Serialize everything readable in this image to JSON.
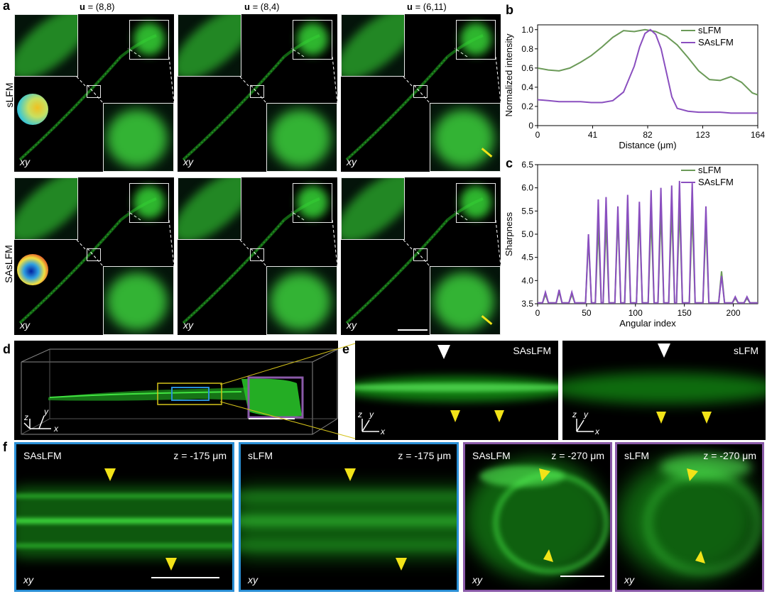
{
  "panel_letters": {
    "a": "a",
    "b": "b",
    "c": "c",
    "d": "d",
    "e": "e",
    "f": "f"
  },
  "panel_a": {
    "columns": [
      "u = (8,8)",
      "u = (8,4)",
      "u = (6,11)"
    ],
    "column_u": "u",
    "column_vals": [
      " = (8,8)",
      " = (8,4)",
      " = (6,11)"
    ],
    "rows": [
      "sLFM",
      "SAsLFM"
    ],
    "plane_label": "xy"
  },
  "panel_e": {
    "left_label": "SAsLFM",
    "right_label": "sLFM"
  },
  "panel_f": {
    "tiles": [
      {
        "method": "SAsLFM",
        "z": "z = -175 μm",
        "plane": "xy"
      },
      {
        "method": "sLFM",
        "z": "z = -175 μm",
        "plane": "xy"
      },
      {
        "method": "SAsLFM",
        "z": "z = -270 μm",
        "plane": "xy"
      },
      {
        "method": "sLFM",
        "z": "z = -270 μm",
        "plane": "xy"
      }
    ]
  },
  "axes_labels": {
    "x": "x",
    "y": "y",
    "z": "z"
  },
  "colors": {
    "slfm": "#6b9a58",
    "saslfm": "#8a4fbf",
    "fluor": "#2fd12f",
    "blue_box": "#2a8fd6",
    "purple_box": "#8a5aa8",
    "yellow": "#f2e318"
  },
  "chart_data": [
    {
      "type": "line",
      "panel": "b",
      "xlabel": "Distance (μm)",
      "ylabel": "Normalized intensity",
      "xlim": [
        0,
        164
      ],
      "ylim": [
        0.0,
        1.05
      ],
      "xticks": [
        0,
        41,
        82,
        123,
        164
      ],
      "yticks": [
        0.0,
        0.2,
        0.4,
        0.6,
        0.8,
        1.0
      ],
      "xtick_labels": [
        "0",
        "41",
        "82",
        "123",
        "164"
      ],
      "ytick_labels": [
        "0",
        "0.2",
        "0.4",
        "0.6",
        "0.8",
        "1.0"
      ],
      "legend_position": "top-right",
      "series": [
        {
          "name": "sLFM",
          "color": "#6b9a58",
          "x": [
            0,
            8,
            16,
            24,
            32,
            40,
            48,
            56,
            64,
            72,
            80,
            88,
            96,
            104,
            112,
            120,
            128,
            136,
            144,
            152,
            160,
            164
          ],
          "y": [
            0.6,
            0.58,
            0.57,
            0.6,
            0.66,
            0.73,
            0.82,
            0.92,
            0.99,
            0.98,
            1.0,
            0.98,
            0.93,
            0.84,
            0.71,
            0.57,
            0.48,
            0.47,
            0.51,
            0.45,
            0.34,
            0.32
          ]
        },
        {
          "name": "SAsLFM",
          "color": "#8a4fbf",
          "x": [
            0,
            8,
            16,
            24,
            32,
            40,
            48,
            56,
            64,
            72,
            76,
            80,
            84,
            88,
            92,
            96,
            100,
            104,
            112,
            120,
            128,
            136,
            144,
            152,
            160,
            164
          ],
          "y": [
            0.27,
            0.26,
            0.25,
            0.25,
            0.25,
            0.24,
            0.24,
            0.26,
            0.35,
            0.62,
            0.82,
            0.96,
            1.0,
            0.95,
            0.8,
            0.55,
            0.3,
            0.18,
            0.15,
            0.14,
            0.14,
            0.14,
            0.13,
            0.13,
            0.13,
            0.13
          ]
        }
      ]
    },
    {
      "type": "line",
      "panel": "c",
      "xlabel": "Angular index",
      "ylabel": "Sharpness",
      "xlim": [
        0,
        225
      ],
      "ylim": [
        3.5,
        6.5
      ],
      "xticks": [
        0,
        50,
        100,
        150,
        200
      ],
      "yticks": [
        3.5,
        4.0,
        4.5,
        5.0,
        5.5,
        6.0,
        6.5
      ],
      "xtick_labels": [
        "0",
        "50",
        "100",
        "150",
        "200"
      ],
      "ytick_labels": [
        "3.5",
        "4.0",
        "4.5",
        "5.0",
        "5.5",
        "6.0",
        "6.5"
      ],
      "legend_position": "top-right",
      "series": [
        {
          "name": "sLFM",
          "color": "#6b9a58",
          "peaks": [
            [
              8,
              3.7
            ],
            [
              22,
              3.75
            ],
            [
              35,
              3.7
            ],
            [
              52,
              4.9
            ],
            [
              62,
              5.2
            ],
            [
              70,
              5.25
            ],
            [
              82,
              5.4
            ],
            [
              92,
              5.35
            ],
            [
              104,
              5.45
            ],
            [
              116,
              5.4
            ],
            [
              126,
              5.5
            ],
            [
              137,
              5.55
            ],
            [
              145,
              5.6
            ],
            [
              158,
              5.5
            ],
            [
              172,
              5.25
            ],
            [
              188,
              4.2
            ],
            [
              202,
              3.62
            ],
            [
              214,
              3.62
            ]
          ],
          "baseline": 3.52
        },
        {
          "name": "SAsLFM",
          "color": "#8a4fbf",
          "peaks": [
            [
              8,
              3.75
            ],
            [
              22,
              3.8
            ],
            [
              35,
              3.75
            ],
            [
              52,
              5.0
            ],
            [
              62,
              5.75
            ],
            [
              70,
              5.8
            ],
            [
              82,
              5.6
            ],
            [
              92,
              5.85
            ],
            [
              104,
              5.7
            ],
            [
              116,
              5.95
            ],
            [
              126,
              6.0
            ],
            [
              137,
              6.05
            ],
            [
              145,
              6.15
            ],
            [
              158,
              6.1
            ],
            [
              172,
              5.6
            ],
            [
              188,
              4.1
            ],
            [
              202,
              3.65
            ],
            [
              214,
              3.65
            ]
          ],
          "baseline": 3.52
        }
      ]
    }
  ]
}
